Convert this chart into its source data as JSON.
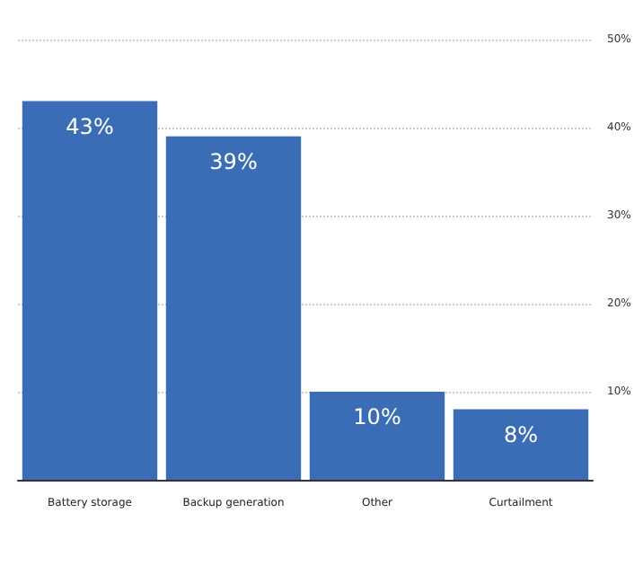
{
  "chart_data": {
    "type": "bar",
    "categories": [
      "Battery storage",
      "Backup generation",
      "Other",
      "Curtailment"
    ],
    "values": [
      43,
      39,
      10,
      8
    ],
    "value_labels": [
      "43%",
      "39%",
      "10%",
      "8%"
    ],
    "color": "#3a6db5",
    "ylim": [
      0,
      50
    ],
    "yticks": [
      {
        "value": 0,
        "label": null
      },
      {
        "value": 10,
        "label": "10%"
      },
      {
        "value": 20,
        "label": "20%"
      },
      {
        "value": 30,
        "label": "30%"
      },
      {
        "value": 40,
        "label": "40%"
      },
      {
        "value": 50,
        "label": "50%"
      }
    ],
    "grid": "y"
  }
}
